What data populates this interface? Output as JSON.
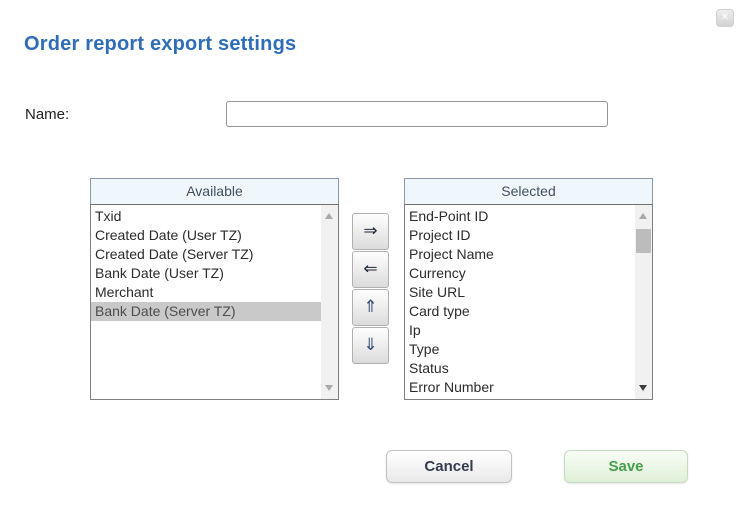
{
  "dialog": {
    "title": "Order report export settings"
  },
  "icons": {
    "close": "✕"
  },
  "form": {
    "name_label": "Name:",
    "name_value": ""
  },
  "lists": {
    "available": {
      "header": "Available",
      "items": [
        "Txid",
        "Created Date (User TZ)",
        "Created Date (Server TZ)",
        "Bank Date (User TZ)",
        "Merchant",
        "Bank Date (Server TZ)"
      ],
      "highlighted_item": "Bank Date (Server TZ)"
    },
    "selected": {
      "header": "Selected",
      "items": [
        "End-Point ID",
        "Project ID",
        "Project Name",
        "Currency",
        "Site URL",
        "Card type",
        "Ip",
        "Type",
        "Status",
        "Error Number"
      ]
    }
  },
  "transfer_buttons": {
    "move_right": "⇒",
    "move_left": "⇐",
    "move_up": "⇑",
    "move_down": "⇓"
  },
  "footer": {
    "cancel_label": "Cancel",
    "save_label": "Save"
  },
  "colors": {
    "title_blue": "#2f6db8",
    "list_header_bg": "#f0f7fc",
    "highlight_gray": "#c9c9c9",
    "save_green": "#44a049"
  }
}
